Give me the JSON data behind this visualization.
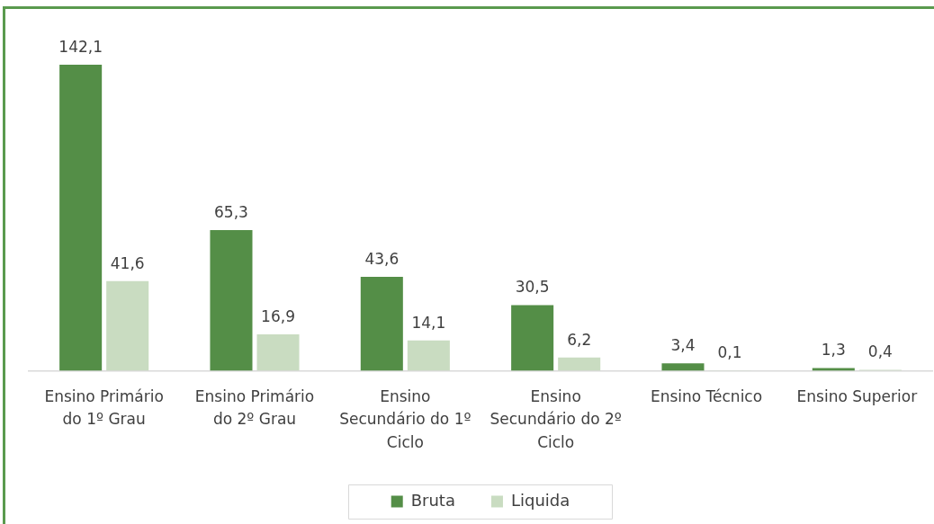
{
  "chart_data": {
    "type": "bar",
    "categories": [
      "Ensino Primário do 1º Grau",
      "Ensino Primário do 2º Grau",
      "Ensino Secundário do 1º Ciclo",
      "Ensino Secundário do 2º Ciclo",
      "Ensino Técnico",
      "Ensino Superior"
    ],
    "series": [
      {
        "name": "Bruta",
        "color": "#548e47",
        "values": [
          142.1,
          65.3,
          43.6,
          30.5,
          3.4,
          1.3
        ],
        "value_labels": [
          "142,1",
          "65,3",
          "43,6",
          "30,5",
          "3,4",
          "1,3"
        ]
      },
      {
        "name": "Liquida",
        "color": "#c9dcc1",
        "values": [
          41.6,
          16.9,
          14.1,
          6.2,
          0.1,
          0.4
        ],
        "value_labels": [
          "41,6",
          "16,9",
          "14,1",
          "6,2",
          "0,1",
          "0,4"
        ]
      }
    ],
    "legend": "bottom",
    "tick_labels": "x"
  }
}
